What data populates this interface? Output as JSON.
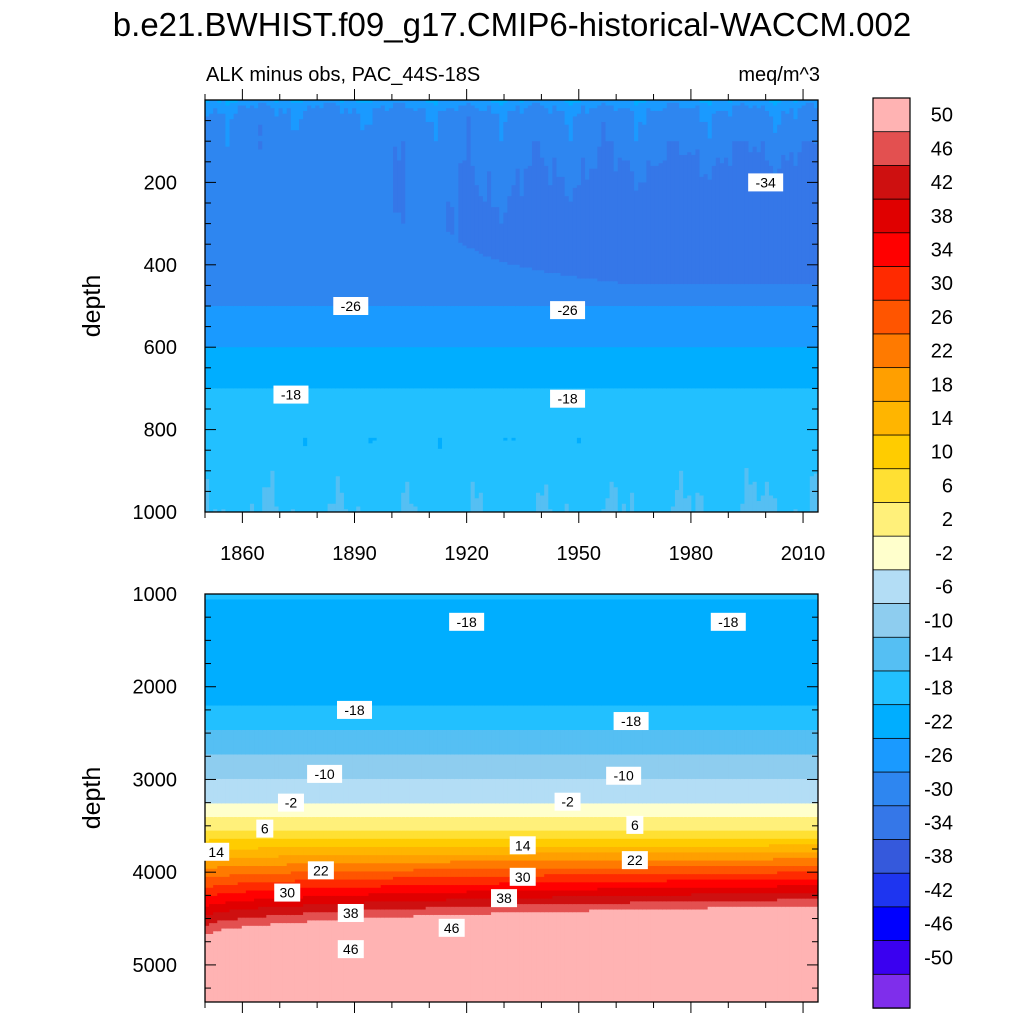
{
  "title": "b.e21.BWHIST.f09_g17.CMIP6-historical-WACCM.002",
  "subtitle_left": "ALK minus obs, PAC_44S-18S",
  "subtitle_right": "meq/m^3",
  "chart_data": {
    "type": "contour",
    "variable": "ALK minus obs",
    "region": "PAC_44S-18S",
    "units": "meq/m^3",
    "x": {
      "label": "",
      "range": [
        1850,
        2014
      ],
      "ticks": [
        1860,
        1890,
        1920,
        1950,
        1980,
        2010
      ]
    },
    "levels": [
      -50,
      -46,
      -42,
      -38,
      -34,
      -30,
      -26,
      -22,
      -18,
      -14,
      -10,
      -6,
      -2,
      2,
      6,
      10,
      14,
      18,
      22,
      26,
      30,
      34,
      38,
      42,
      46,
      50
    ],
    "colorbar": {
      "labels": [
        "50",
        "46",
        "42",
        "38",
        "34",
        "30",
        "26",
        "22",
        "18",
        "14",
        "10",
        "6",
        "2",
        "-2",
        "-6",
        "-10",
        "-14",
        "-18",
        "-22",
        "-26",
        "-30",
        "-34",
        "-38",
        "-42",
        "-46",
        "-50"
      ],
      "colors": [
        "#FFB3B3",
        "#E35050",
        "#CE1010",
        "#E00000",
        "#FF0000",
        "#FF2A00",
        "#FF5500",
        "#FF7A00",
        "#FF9F00",
        "#FFB500",
        "#FFCC00",
        "#FFE033",
        "#FFF07A",
        "#FFFFCC",
        "#B3DDF5",
        "#8ECDEF",
        "#55BFF3",
        "#22C0FF",
        "#00AEFF",
        "#1A9AFF",
        "#2E86F0",
        "#3577E8",
        "#3559DC",
        "#1E35F0",
        "#0000FF",
        "#3A00F0",
        "#7F2EEB"
      ]
    },
    "panels": [
      {
        "name": "upper",
        "ylabel": "depth",
        "y_range": [
          0,
          1000
        ],
        "y_ticks": [
          200,
          400,
          600,
          800,
          1000
        ],
        "contour_labels": [
          {
            "text": "-34",
            "x": 2000,
            "depth": 200
          },
          {
            "text": "-26",
            "x": 1889,
            "depth": 500
          },
          {
            "text": "-26",
            "x": 1947,
            "depth": 510
          },
          {
            "text": "-18",
            "x": 1873,
            "depth": 715
          },
          {
            "text": "-18",
            "x": 1947,
            "depth": 725
          }
        ]
      },
      {
        "name": "lower",
        "ylabel": "depth",
        "y_range": [
          1000,
          5400
        ],
        "y_ticks": [
          1000,
          2000,
          3000,
          4000,
          5000
        ],
        "contour_labels": [
          {
            "text": "-18",
            "x": 1920,
            "depth": 1300
          },
          {
            "text": "-18",
            "x": 1990,
            "depth": 1300
          },
          {
            "text": "-18",
            "x": 1890,
            "depth": 2250
          },
          {
            "text": "-18",
            "x": 1964,
            "depth": 2370
          },
          {
            "text": "-10",
            "x": 1882,
            "depth": 2940
          },
          {
            "text": "-10",
            "x": 1962,
            "depth": 2960
          },
          {
            "text": "-2",
            "x": 1873,
            "depth": 3250
          },
          {
            "text": "-2",
            "x": 1947,
            "depth": 3240
          },
          {
            "text": "6",
            "x": 1866,
            "depth": 3530
          },
          {
            "text": "6",
            "x": 1965,
            "depth": 3490
          },
          {
            "text": "14",
            "x": 1853,
            "depth": 3780
          },
          {
            "text": "14",
            "x": 1935,
            "depth": 3710
          },
          {
            "text": "22",
            "x": 1881,
            "depth": 3980
          },
          {
            "text": "22",
            "x": 1965,
            "depth": 3870
          },
          {
            "text": "30",
            "x": 1872,
            "depth": 4220
          },
          {
            "text": "30",
            "x": 1935,
            "depth": 4050
          },
          {
            "text": "38",
            "x": 1889,
            "depth": 4440
          },
          {
            "text": "38",
            "x": 1930,
            "depth": 4280
          },
          {
            "text": "46",
            "x": 1889,
            "depth": 4830
          },
          {
            "text": "46",
            "x": 1916,
            "depth": 4600
          }
        ]
      }
    ]
  }
}
